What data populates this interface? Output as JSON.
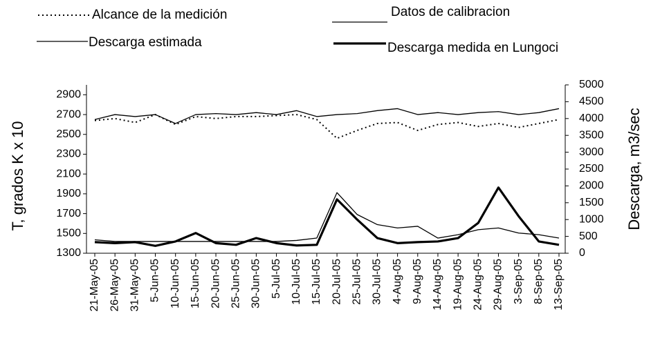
{
  "chart_data": {
    "type": "line",
    "y_label": "T, grados K x 10",
    "y2_label": "Descarga, m3/sec",
    "categories": [
      "21-May-05",
      "26-May-05",
      "31-May-05",
      "5-Jun-05",
      "10-Jun-05",
      "15-Jun-05",
      "20-Jun-05",
      "25-Jun-05",
      "30-Jun-05",
      "5-Jul-05",
      "10-Jul-05",
      "15-Jul-05",
      "20-Jul-05",
      "25-Jul-05",
      "30-Jul-05",
      "4-Aug-05",
      "9-Aug-05",
      "14-Aug-05",
      "19-Aug-05",
      "24-Aug-05",
      "29-Aug-05",
      "3-Sep-05",
      "8-Sep-05",
      "13-Sep-05"
    ],
    "ylim": [
      1300,
      3000
    ],
    "yticks": [
      1300,
      1500,
      1700,
      1900,
      2100,
      2300,
      2500,
      2700,
      2900
    ],
    "y2lim": [
      0,
      5000
    ],
    "y2ticks": [
      0,
      500,
      1000,
      1500,
      2000,
      2500,
      3000,
      3500,
      4000,
      4500,
      5000
    ],
    "series": [
      {
        "name": "Alcance de la medición",
        "color": "#000000",
        "style": "dotted",
        "values": [
          2640,
          2660,
          2620,
          2700,
          2600,
          2680,
          2660,
          2680,
          2680,
          2690,
          2700,
          2650,
          2460,
          2540,
          2610,
          2620,
          2540,
          2600,
          2620,
          2580,
          2610,
          2570,
          2610,
          2650
        ]
      },
      {
        "name": "Datos de calibracion",
        "color": "#000000",
        "style": "thin",
        "values": [
          2650,
          2700,
          2680,
          2700,
          2610,
          2700,
          2710,
          2700,
          2720,
          2700,
          2740,
          2680,
          2700,
          2710,
          2740,
          2760,
          2700,
          2720,
          2700,
          2720,
          2730,
          2700,
          2720,
          2760
        ]
      },
      {
        "name": "Descarga estimada",
        "color": "#000000",
        "style": "thin",
        "axis": "y2",
        "values": [
          400,
          350,
          350,
          350,
          350,
          350,
          350,
          350,
          350,
          350,
          380,
          450,
          1800,
          1150,
          850,
          750,
          800,
          450,
          550,
          700,
          750,
          600,
          550,
          450
        ]
      },
      {
        "name": "Descarga medida en Lungoci",
        "color": "#000000",
        "style": "thick",
        "axis": "y2",
        "values": [
          330,
          300,
          330,
          220,
          350,
          600,
          300,
          250,
          450,
          300,
          230,
          250,
          1600,
          1000,
          450,
          300,
          330,
          350,
          450,
          900,
          1950,
          1100,
          350,
          250
        ]
      }
    ]
  }
}
